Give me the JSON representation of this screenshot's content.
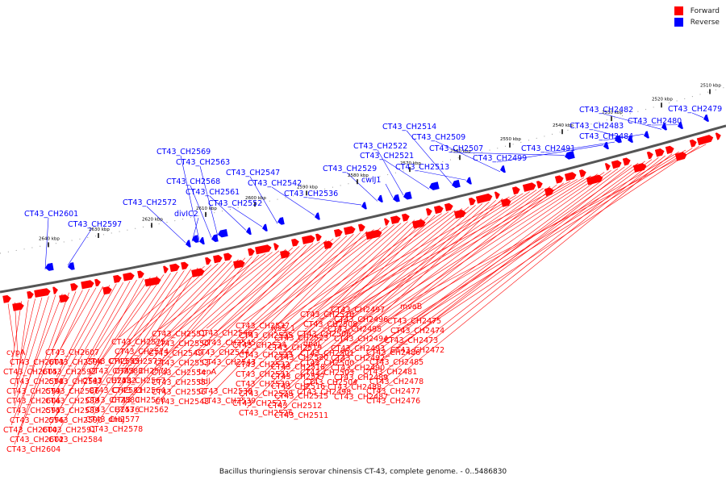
{
  "legend": {
    "forward_label": "Forward",
    "reverse_label": "Reverse",
    "forward_color": "#ff0000",
    "reverse_color": "#0000ff"
  },
  "caption": "Bacillus thuringiensis serovar chinensis CT-43, complete genome. - 0..5486830",
  "ticks": [
    "2640 kbp",
    "2630 kbp",
    "2620 kbp",
    "2610 kbp",
    "2600 kbp",
    "2590 kbp",
    "2580 kbp",
    "2570 kbp",
    "2560 kbp",
    "2550 kbp",
    "2540 kbp",
    "2530 kbp",
    "2520 kbp",
    "2510 kbp"
  ],
  "reverse_labels": [
    "CT43_CH2601",
    "CT43_CH2597",
    "CT43_CH2572",
    "divIC2",
    "CT43_CH2569",
    "CT43_CH2568",
    "CT43_CH2563",
    "CT43_CH2561",
    "CT43_CH2552",
    "CT43_CH2547",
    "CT43_CH2542",
    "CT43_CH2536",
    "CT43_CH2529",
    "cwlJ1",
    "CT43_CH2522",
    "CT43_CH2521",
    "CT43_CH2514",
    "CT43_CH2513",
    "CT43_CH2509",
    "CT43_CH2507",
    "CT43_CH2499",
    "CT43_CH2491",
    "CT43_CH2483",
    "CT43_CH2484",
    "CT43_CH2482",
    "CT43_CH2480",
    "CT43_CH2479"
  ],
  "forward_labels": [
    "cypA",
    "CT43_CH2603",
    "CT43_CH2605",
    "CT43_CH2598",
    "CT43_CH2599",
    "CT43_CH2606",
    "CT43_CH2595",
    "CT43_CH2596",
    "CT43_CH2600",
    "CT43_CH2602",
    "CT43_CH2604",
    "CT43_CH2607",
    "CT43_CH2594",
    "CT43_CH2593",
    "CT43_CH2587",
    "CT43_CH2586",
    "CT43_CH2588",
    "CT43_CH2589",
    "CT43_CH2590",
    "CT43_CH2591",
    "CT43_CH2584",
    "CT43_CH2585",
    "CT43_CH2583",
    "CT43_CH2582",
    "CT43_CH2581",
    "CT43_CH2580",
    "CT43_CH2576",
    "CT43_CH2577",
    "CT43_CH2578",
    "CT43_CH2575",
    "CT43_CH2574",
    "CT43_CH2573",
    "CT43_CH2571",
    "CT43_CH2567",
    "CT43_CH2564",
    "CT43_CH2560",
    "CT43_CH2562",
    "dnaJ",
    "CT43_CH2551",
    "CT43_CH2550",
    "CT43_CH2549",
    "CT43_CH2553",
    "CT43_CH2554",
    "CT43_CH2555",
    "CT43_CH2556",
    "CT43_CH2548",
    "CT43_CH2546",
    "CT43_CH2545",
    "CT43_CH2544",
    "CT43_CH2543",
    "tenA",
    "ddl",
    "CT43_CH2538",
    "CT43_CH2539",
    "CT43_CH2537",
    "CT43_CH2535",
    "CT43_CH2534",
    "CT43_CH2533",
    "CT43_CH2532",
    "CT43_CH2531",
    "CT43_CH2530",
    "CT43_CH2528",
    "CT43_CH2527",
    "CT43_CH2526",
    "lysS_1",
    "CT43_CH2523",
    "CT43_CH2519",
    "CT43_CH2520",
    "CT43_CH2518",
    "CT43_CH2517",
    "CT43_CH2516",
    "CT43_CH2515",
    "CT43_CH2512",
    "CT43_CH2511",
    "CT43_CH2510",
    "CT43_CH2508",
    "CT43_CH2506",
    "dnaI",
    "CT43_CH2501",
    "CT43_CH2500",
    "CT43_CH2503",
    "CT43_CH2504",
    "CT43_CH2498",
    "CT43_CH2497",
    "CT43_CH2496",
    "CT43_CH2495",
    "CT43_CH2494",
    "CT43_CH2493",
    "CT43_CH2492",
    "CT43_CH2490",
    "CT43_CH2489",
    "CT43_CH2488",
    "CT43_CH2487",
    "CT43_CH2486",
    "CT43_CH2485",
    "CT43_CH2481",
    "CT43_CH2478",
    "CT43_CH2477",
    "CT43_CH2476",
    "CT43_CH2475",
    "CT43_CH2474",
    "CT43_CH2473",
    "CT43_CH2472",
    "mvaB"
  ]
}
